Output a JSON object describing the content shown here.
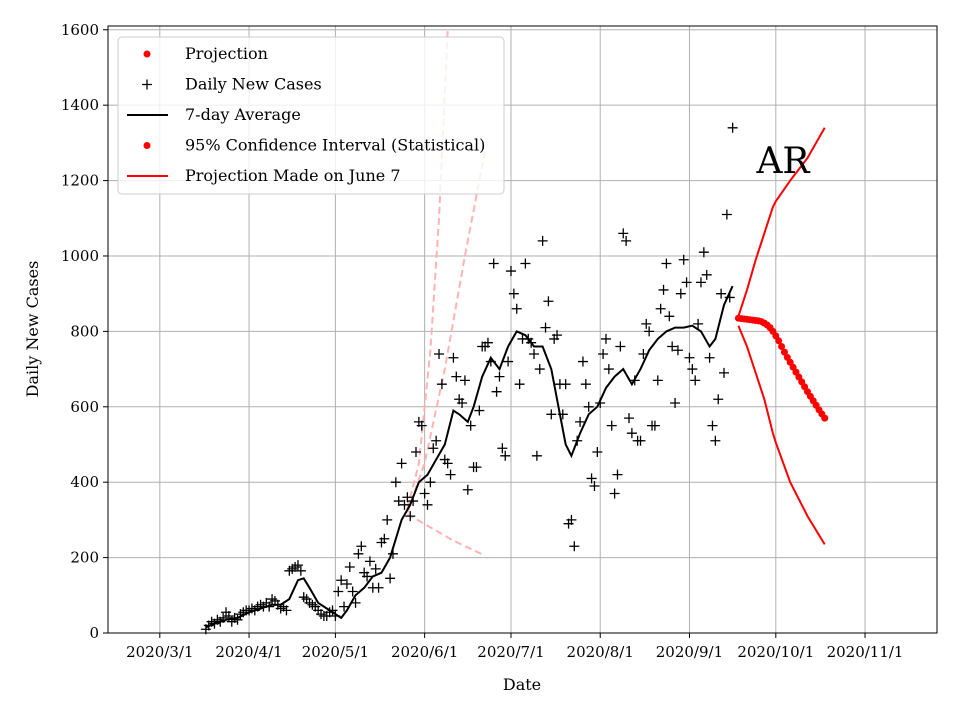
{
  "chart_data": {
    "type": "line",
    "xlabel": "Date",
    "ylabel": "Daily New Cases",
    "annotation": "AR",
    "xlim": [
      "2020-02-12",
      "2020-11-26"
    ],
    "ylim": [
      0,
      1610
    ],
    "grid": true,
    "legend_position": "top-left",
    "x_ticks": [
      "2020/3/1",
      "2020/4/1",
      "2020/5/1",
      "2020/6/1",
      "2020/7/1",
      "2020/8/1",
      "2020/9/1",
      "2020/10/1",
      "2020/11/1"
    ],
    "x_tick_dates": [
      "2020-03-01",
      "2020-04-01",
      "2020-05-01",
      "2020-06-01",
      "2020-07-01",
      "2020-08-01",
      "2020-09-01",
      "2020-10-01",
      "2020-11-01"
    ],
    "y_ticks": [
      0,
      200,
      400,
      600,
      800,
      1000,
      1200,
      1400,
      1600
    ],
    "legend": [
      {
        "label": "Projection",
        "style": "dot",
        "color": "#ff0000"
      },
      {
        "label": "Daily New Cases",
        "style": "plus",
        "color": "#000000"
      },
      {
        "label": "7-day Average",
        "style": "line",
        "color": "#000000"
      },
      {
        "label": "95% Confidence Interval (Statistical)",
        "style": "dot",
        "color": "#ff0000"
      },
      {
        "label": "Projection Made on June 7",
        "style": "line",
        "color": "#ff0000"
      }
    ],
    "daily_new_cases": [
      [
        "2020-03-17",
        10
      ],
      [
        "2020-03-18",
        20
      ],
      [
        "2020-03-19",
        30
      ],
      [
        "2020-03-20",
        25
      ],
      [
        "2020-03-21",
        35
      ],
      [
        "2020-03-22",
        30
      ],
      [
        "2020-03-23",
        40
      ],
      [
        "2020-03-24",
        55
      ],
      [
        "2020-03-25",
        45
      ],
      [
        "2020-03-26",
        30
      ],
      [
        "2020-03-27",
        40
      ],
      [
        "2020-03-28",
        35
      ],
      [
        "2020-03-29",
        50
      ],
      [
        "2020-03-30",
        55
      ],
      [
        "2020-03-31",
        60
      ],
      [
        "2020-04-01",
        60
      ],
      [
        "2020-04-02",
        65
      ],
      [
        "2020-04-03",
        60
      ],
      [
        "2020-04-04",
        70
      ],
      [
        "2020-04-05",
        75
      ],
      [
        "2020-04-06",
        70
      ],
      [
        "2020-04-07",
        80
      ],
      [
        "2020-04-08",
        70
      ],
      [
        "2020-04-09",
        90
      ],
      [
        "2020-04-10",
        85
      ],
      [
        "2020-04-11",
        75
      ],
      [
        "2020-04-12",
        65
      ],
      [
        "2020-04-13",
        70
      ],
      [
        "2020-04-14",
        60
      ],
      [
        "2020-04-15",
        165
      ],
      [
        "2020-04-16",
        170
      ],
      [
        "2020-04-17",
        175
      ],
      [
        "2020-04-18",
        180
      ],
      [
        "2020-04-19",
        165
      ],
      [
        "2020-04-20",
        95
      ],
      [
        "2020-04-21",
        90
      ],
      [
        "2020-04-22",
        80
      ],
      [
        "2020-04-23",
        75
      ],
      [
        "2020-04-24",
        70
      ],
      [
        "2020-04-25",
        60
      ],
      [
        "2020-04-26",
        50
      ],
      [
        "2020-04-27",
        45
      ],
      [
        "2020-04-28",
        45
      ],
      [
        "2020-04-29",
        55
      ],
      [
        "2020-04-30",
        60
      ],
      [
        "2020-05-01",
        45
      ],
      [
        "2020-05-02",
        110
      ],
      [
        "2020-05-03",
        140
      ],
      [
        "2020-05-04",
        70
      ],
      [
        "2020-05-05",
        130
      ],
      [
        "2020-05-06",
        175
      ],
      [
        "2020-05-07",
        110
      ],
      [
        "2020-05-08",
        80
      ],
      [
        "2020-05-09",
        210
      ],
      [
        "2020-05-10",
        230
      ],
      [
        "2020-05-11",
        160
      ],
      [
        "2020-05-12",
        150
      ],
      [
        "2020-05-13",
        190
      ],
      [
        "2020-05-14",
        120
      ],
      [
        "2020-05-15",
        170
      ],
      [
        "2020-05-16",
        120
      ],
      [
        "2020-05-17",
        240
      ],
      [
        "2020-05-18",
        250
      ],
      [
        "2020-05-19",
        300
      ],
      [
        "2020-05-20",
        145
      ],
      [
        "2020-05-21",
        210
      ],
      [
        "2020-05-22",
        400
      ],
      [
        "2020-05-23",
        350
      ],
      [
        "2020-05-24",
        450
      ],
      [
        "2020-05-25",
        340
      ],
      [
        "2020-05-26",
        360
      ],
      [
        "2020-05-27",
        310
      ],
      [
        "2020-05-28",
        350
      ],
      [
        "2020-05-29",
        480
      ],
      [
        "2020-05-30",
        560
      ],
      [
        "2020-05-31",
        550
      ],
      [
        "2020-06-01",
        370
      ],
      [
        "2020-06-02",
        340
      ],
      [
        "2020-06-03",
        400
      ],
      [
        "2020-06-04",
        490
      ],
      [
        "2020-06-05",
        510
      ],
      [
        "2020-06-06",
        740
      ],
      [
        "2020-06-07",
        660
      ],
      [
        "2020-06-08",
        460
      ],
      [
        "2020-06-09",
        450
      ],
      [
        "2020-06-10",
        420
      ],
      [
        "2020-06-11",
        730
      ],
      [
        "2020-06-12",
        680
      ],
      [
        "2020-06-13",
        620
      ],
      [
        "2020-06-14",
        610
      ],
      [
        "2020-06-15",
        670
      ],
      [
        "2020-06-16",
        380
      ],
      [
        "2020-06-17",
        550
      ],
      [
        "2020-06-18",
        440
      ],
      [
        "2020-06-19",
        440
      ],
      [
        "2020-06-20",
        590
      ],
      [
        "2020-06-21",
        760
      ],
      [
        "2020-06-22",
        760
      ],
      [
        "2020-06-23",
        770
      ],
      [
        "2020-06-24",
        720
      ],
      [
        "2020-06-25",
        980
      ],
      [
        "2020-06-26",
        640
      ],
      [
        "2020-06-27",
        680
      ],
      [
        "2020-06-28",
        490
      ],
      [
        "2020-06-29",
        470
      ],
      [
        "2020-06-30",
        720
      ],
      [
        "2020-07-01",
        960
      ],
      [
        "2020-07-02",
        900
      ],
      [
        "2020-07-03",
        860
      ],
      [
        "2020-07-04",
        660
      ],
      [
        "2020-07-05",
        780
      ],
      [
        "2020-07-06",
        980
      ],
      [
        "2020-07-07",
        780
      ],
      [
        "2020-07-08",
        770
      ],
      [
        "2020-07-09",
        740
      ],
      [
        "2020-07-10",
        470
      ],
      [
        "2020-07-11",
        700
      ],
      [
        "2020-07-12",
        1040
      ],
      [
        "2020-07-13",
        810
      ],
      [
        "2020-07-14",
        880
      ],
      [
        "2020-07-15",
        580
      ],
      [
        "2020-07-16",
        780
      ],
      [
        "2020-07-17",
        790
      ],
      [
        "2020-07-18",
        660
      ],
      [
        "2020-07-19",
        580
      ],
      [
        "2020-07-20",
        660
      ],
      [
        "2020-07-21",
        290
      ],
      [
        "2020-07-22",
        300
      ],
      [
        "2020-07-23",
        230
      ],
      [
        "2020-07-24",
        510
      ],
      [
        "2020-07-25",
        560
      ],
      [
        "2020-07-26",
        720
      ],
      [
        "2020-07-27",
        660
      ],
      [
        "2020-07-28",
        600
      ],
      [
        "2020-07-29",
        410
      ],
      [
        "2020-07-30",
        390
      ],
      [
        "2020-07-31",
        480
      ],
      [
        "2020-08-01",
        610
      ],
      [
        "2020-08-02",
        740
      ],
      [
        "2020-08-03",
        780
      ],
      [
        "2020-08-04",
        700
      ],
      [
        "2020-08-05",
        550
      ],
      [
        "2020-08-06",
        370
      ],
      [
        "2020-08-07",
        420
      ],
      [
        "2020-08-08",
        760
      ],
      [
        "2020-08-09",
        1060
      ],
      [
        "2020-08-10",
        1040
      ],
      [
        "2020-08-11",
        570
      ],
      [
        "2020-08-12",
        530
      ],
      [
        "2020-08-13",
        670
      ],
      [
        "2020-08-14",
        510
      ],
      [
        "2020-08-15",
        510
      ],
      [
        "2020-08-16",
        740
      ],
      [
        "2020-08-17",
        820
      ],
      [
        "2020-08-18",
        800
      ],
      [
        "2020-08-19",
        550
      ],
      [
        "2020-08-20",
        550
      ],
      [
        "2020-08-21",
        670
      ],
      [
        "2020-08-22",
        860
      ],
      [
        "2020-08-23",
        910
      ],
      [
        "2020-08-24",
        980
      ],
      [
        "2020-08-25",
        840
      ],
      [
        "2020-08-26",
        760
      ],
      [
        "2020-08-27",
        610
      ],
      [
        "2020-08-28",
        750
      ],
      [
        "2020-08-29",
        900
      ],
      [
        "2020-08-30",
        990
      ],
      [
        "2020-08-31",
        930
      ],
      [
        "2020-09-01",
        730
      ],
      [
        "2020-09-02",
        700
      ],
      [
        "2020-09-03",
        670
      ],
      [
        "2020-09-04",
        820
      ],
      [
        "2020-09-05",
        930
      ],
      [
        "2020-09-06",
        1010
      ],
      [
        "2020-09-07",
        950
      ],
      [
        "2020-09-08",
        730
      ],
      [
        "2020-09-09",
        550
      ],
      [
        "2020-09-10",
        510
      ],
      [
        "2020-09-11",
        620
      ],
      [
        "2020-09-12",
        900
      ],
      [
        "2020-09-13",
        690
      ],
      [
        "2020-09-14",
        1110
      ],
      [
        "2020-09-15",
        890
      ],
      [
        "2020-09-16",
        1340
      ]
    ],
    "seven_day_average": [
      [
        "2020-03-17",
        15
      ],
      [
        "2020-03-20",
        25
      ],
      [
        "2020-03-24",
        35
      ],
      [
        "2020-03-28",
        40
      ],
      [
        "2020-04-01",
        55
      ],
      [
        "2020-04-05",
        65
      ],
      [
        "2020-04-09",
        75
      ],
      [
        "2020-04-12",
        75
      ],
      [
        "2020-04-15",
        90
      ],
      [
        "2020-04-18",
        140
      ],
      [
        "2020-04-20",
        145
      ],
      [
        "2020-04-22",
        120
      ],
      [
        "2020-04-25",
        80
      ],
      [
        "2020-04-28",
        65
      ],
      [
        "2020-05-01",
        50
      ],
      [
        "2020-05-03",
        40
      ],
      [
        "2020-05-05",
        60
      ],
      [
        "2020-05-08",
        100
      ],
      [
        "2020-05-11",
        120
      ],
      [
        "2020-05-14",
        150
      ],
      [
        "2020-05-17",
        160
      ],
      [
        "2020-05-20",
        200
      ],
      [
        "2020-05-24",
        300
      ],
      [
        "2020-05-27",
        340
      ],
      [
        "2020-05-30",
        400
      ],
      [
        "2020-06-02",
        420
      ],
      [
        "2020-06-05",
        460
      ],
      [
        "2020-06-08",
        500
      ],
      [
        "2020-06-11",
        590
      ],
      [
        "2020-06-13",
        580
      ],
      [
        "2020-06-16",
        560
      ],
      [
        "2020-06-18",
        600
      ],
      [
        "2020-06-21",
        680
      ],
      [
        "2020-06-24",
        730
      ],
      [
        "2020-06-27",
        700
      ],
      [
        "2020-06-30",
        760
      ],
      [
        "2020-07-03",
        800
      ],
      [
        "2020-07-06",
        790
      ],
      [
        "2020-07-09",
        760
      ],
      [
        "2020-07-12",
        760
      ],
      [
        "2020-07-15",
        700
      ],
      [
        "2020-07-18",
        580
      ],
      [
        "2020-07-20",
        500
      ],
      [
        "2020-07-22",
        470
      ],
      [
        "2020-07-25",
        530
      ],
      [
        "2020-07-28",
        580
      ],
      [
        "2020-07-31",
        600
      ],
      [
        "2020-08-03",
        650
      ],
      [
        "2020-08-06",
        680
      ],
      [
        "2020-08-09",
        700
      ],
      [
        "2020-08-12",
        660
      ],
      [
        "2020-08-15",
        700
      ],
      [
        "2020-08-18",
        750
      ],
      [
        "2020-08-21",
        780
      ],
      [
        "2020-08-24",
        800
      ],
      [
        "2020-08-27",
        810
      ],
      [
        "2020-08-30",
        810
      ],
      [
        "2020-09-02",
        815
      ],
      [
        "2020-09-05",
        800
      ],
      [
        "2020-09-08",
        760
      ],
      [
        "2020-09-10",
        780
      ],
      [
        "2020-09-13",
        870
      ],
      [
        "2020-09-16",
        920
      ]
    ],
    "projection": [
      [
        "2020-09-18",
        835
      ],
      [
        "2020-09-19",
        834
      ],
      [
        "2020-09-20",
        833
      ],
      [
        "2020-09-21",
        832
      ],
      [
        "2020-09-22",
        831
      ],
      [
        "2020-09-23",
        830
      ],
      [
        "2020-09-24",
        829
      ],
      [
        "2020-09-25",
        828
      ],
      [
        "2020-09-26",
        826
      ],
      [
        "2020-09-27",
        822
      ],
      [
        "2020-09-28",
        817
      ],
      [
        "2020-09-29",
        810
      ],
      [
        "2020-09-30",
        800
      ],
      [
        "2020-10-01",
        788
      ],
      [
        "2020-10-02",
        775
      ],
      [
        "2020-10-03",
        760
      ],
      [
        "2020-10-04",
        745
      ],
      [
        "2020-10-05",
        731
      ],
      [
        "2020-10-06",
        718
      ],
      [
        "2020-10-07",
        705
      ],
      [
        "2020-10-08",
        692
      ],
      [
        "2020-10-09",
        679
      ],
      [
        "2020-10-10",
        666
      ],
      [
        "2020-10-11",
        653
      ],
      [
        "2020-10-12",
        640
      ],
      [
        "2020-10-13",
        628
      ],
      [
        "2020-10-14",
        616
      ],
      [
        "2020-10-15",
        604
      ],
      [
        "2020-10-16",
        592
      ],
      [
        "2020-10-17",
        581
      ],
      [
        "2020-10-18",
        570
      ]
    ],
    "ci_upper": [
      [
        "2020-09-18",
        840
      ],
      [
        "2020-09-21",
        910
      ],
      [
        "2020-09-24",
        990
      ],
      [
        "2020-09-27",
        1060
      ],
      [
        "2020-09-30",
        1130
      ],
      [
        "2020-10-01",
        1145
      ],
      [
        "2020-10-06",
        1200
      ],
      [
        "2020-10-12",
        1260
      ],
      [
        "2020-10-18",
        1340
      ]
    ],
    "ci_lower": [
      [
        "2020-09-18",
        815
      ],
      [
        "2020-09-21",
        760
      ],
      [
        "2020-09-24",
        690
      ],
      [
        "2020-09-27",
        620
      ],
      [
        "2020-09-30",
        530
      ],
      [
        "2020-10-01",
        505
      ],
      [
        "2020-10-06",
        400
      ],
      [
        "2020-10-12",
        310
      ],
      [
        "2020-10-18",
        235
      ]
    ],
    "june7_projection_upper": [
      [
        "2020-05-26",
        330
      ],
      [
        "2020-05-30",
        450
      ],
      [
        "2020-06-03",
        750
      ],
      [
        "2020-06-06",
        1100
      ],
      [
        "2020-06-09",
        1600
      ]
    ],
    "june7_projection_mid": [
      [
        "2020-05-26",
        320
      ],
      [
        "2020-06-01",
        450
      ],
      [
        "2020-06-08",
        700
      ],
      [
        "2020-06-15",
        1000
      ],
      [
        "2020-06-22",
        1280
      ]
    ],
    "june7_projection_lower": [
      [
        "2020-05-26",
        315
      ],
      [
        "2020-06-03",
        280
      ],
      [
        "2020-06-11",
        245
      ],
      [
        "2020-06-22",
        205
      ]
    ]
  }
}
